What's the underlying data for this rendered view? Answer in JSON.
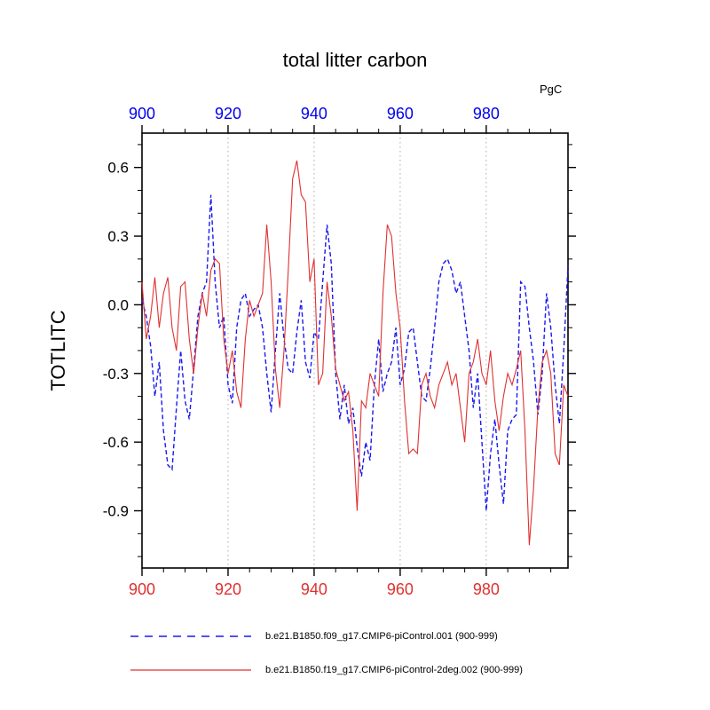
{
  "title": "total litter carbon",
  "units_label": "PgC",
  "ylabel": "TOTLITC",
  "colors": {
    "series_blue": "#1a1aee",
    "series_red": "#e03030",
    "top_axis_labels": "#0000ee",
    "bottom_axis_labels": "#e03030",
    "gridline": "#aaaaaa",
    "frame": "#000000"
  },
  "axes": {
    "xlim": [
      900,
      999
    ],
    "ylim": [
      -1.15,
      0.75
    ],
    "x_major_ticks": [
      900,
      920,
      940,
      960,
      980
    ],
    "x_minor_step": 5,
    "y_major_ticks": [
      0.6,
      0.3,
      0.0,
      -0.3,
      -0.6,
      -0.9
    ],
    "y_minor_step": 0.1,
    "grid_x": [
      920,
      940,
      960,
      980
    ]
  },
  "legend": [
    {
      "label": "b.e21.B1850.f09_g17.CMIP6-piControl.001 (900-999)",
      "style": "dashed",
      "color_key": "series_blue"
    },
    {
      "label": "b.e21.B1850.f19_g17.CMIP6-piControl-2deg.002 (900-999)",
      "style": "solid",
      "color_key": "series_red"
    }
  ],
  "chart_data": {
    "type": "line",
    "title": "total litter carbon",
    "xlabel": "",
    "ylabel": "TOTLITC",
    "units": "PgC",
    "xlim": [
      900,
      999
    ],
    "ylim": [
      -1.15,
      0.75
    ],
    "grid": "vertical-dotted",
    "legend_position": "bottom",
    "x_start": 900,
    "x_step": 1,
    "n_points": 100,
    "series": [
      {
        "name": "b.e21.B1850.f09_g17.CMIP6-piControl.001 (900-999)",
        "style": "dashed",
        "color": "#1a1aee",
        "values": [
          0.02,
          -0.05,
          -0.18,
          -0.4,
          -0.25,
          -0.55,
          -0.7,
          -0.72,
          -0.45,
          -0.2,
          -0.42,
          -0.5,
          -0.28,
          -0.05,
          0.05,
          0.1,
          0.48,
          0.1,
          -0.1,
          -0.05,
          -0.35,
          -0.43,
          -0.1,
          0.02,
          0.05,
          -0.05,
          -0.02,
          0.0,
          -0.1,
          -0.3,
          -0.47,
          -0.2,
          0.05,
          -0.15,
          -0.28,
          -0.3,
          -0.12,
          0.02,
          -0.25,
          -0.32,
          -0.12,
          -0.15,
          0.1,
          0.35,
          0.18,
          -0.3,
          -0.5,
          -0.35,
          -0.52,
          -0.45,
          -0.62,
          -0.75,
          -0.6,
          -0.68,
          -0.35,
          -0.15,
          -0.38,
          -0.3,
          -0.25,
          -0.1,
          -0.35,
          -0.28,
          -0.12,
          -0.1,
          -0.25,
          -0.4,
          -0.42,
          -0.28,
          -0.1,
          0.1,
          0.18,
          0.2,
          0.15,
          0.05,
          0.1,
          -0.05,
          -0.2,
          -0.45,
          -0.3,
          -0.6,
          -0.9,
          -0.65,
          -0.5,
          -0.7,
          -0.87,
          -0.55,
          -0.5,
          -0.48,
          0.1,
          0.08,
          -0.1,
          -0.25,
          -0.48,
          -0.3,
          0.05,
          -0.1,
          -0.35,
          -0.52,
          -0.2,
          0.17
        ]
      },
      {
        "name": "b.e21.B1850.f19_g17.CMIP6-piControl-2deg.002 (900-999)",
        "style": "solid",
        "color": "#e03030",
        "values": [
          0.1,
          -0.15,
          -0.05,
          0.12,
          -0.1,
          0.05,
          0.12,
          -0.1,
          -0.2,
          0.08,
          0.1,
          -0.15,
          -0.3,
          -0.1,
          0.05,
          -0.05,
          0.15,
          0.2,
          0.18,
          -0.15,
          -0.3,
          -0.2,
          -0.38,
          -0.45,
          -0.15,
          0.02,
          -0.05,
          0.0,
          0.05,
          0.35,
          0.1,
          -0.28,
          -0.45,
          -0.2,
          0.15,
          0.55,
          0.63,
          0.48,
          0.45,
          0.1,
          0.2,
          -0.35,
          -0.3,
          0.1,
          -0.05,
          -0.28,
          -0.35,
          -0.42,
          -0.38,
          -0.55,
          -0.9,
          -0.42,
          -0.45,
          -0.3,
          -0.35,
          -0.4,
          0.05,
          0.35,
          0.3,
          0.05,
          -0.1,
          -0.42,
          -0.65,
          -0.63,
          -0.65,
          -0.35,
          -0.3,
          -0.4,
          -0.45,
          -0.35,
          -0.3,
          -0.25,
          -0.35,
          -0.3,
          -0.45,
          -0.6,
          -0.3,
          -0.25,
          -0.15,
          -0.3,
          -0.35,
          -0.2,
          -0.42,
          -0.55,
          -0.4,
          -0.3,
          -0.35,
          -0.28,
          -0.2,
          -0.55,
          -1.05,
          -0.8,
          -0.45,
          -0.25,
          -0.2,
          -0.3,
          -0.65,
          -0.7,
          -0.35,
          -0.4
        ]
      }
    ]
  }
}
